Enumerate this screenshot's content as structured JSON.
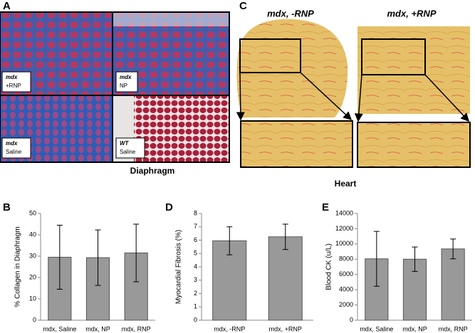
{
  "panels": {
    "labels": [
      "A",
      "B",
      "C",
      "D",
      "E"
    ],
    "diaphragm_caption": "Diaphragm",
    "heart_caption": "Heart",
    "heart_titles": [
      "mdx, -RNP",
      "mdx, +RNP"
    ],
    "image_labels": [
      [
        "mdx",
        "+RNP"
      ],
      [
        "mdx",
        "NP"
      ],
      [
        "mdx",
        "Saline"
      ],
      [
        "WT",
        "Saline"
      ]
    ]
  },
  "chart_data": [
    {
      "type": "bar",
      "y_label": "% Collagen in Diaphragm",
      "categories": [
        "mdx, Saline",
        "mdx, NP",
        "mdx, RNP"
      ],
      "values": [
        29.5,
        29.3,
        31.5
      ],
      "errors": [
        15,
        13,
        13.5
      ],
      "color": "#999999",
      "ylim": [
        0,
        50
      ],
      "yticks": [
        0,
        10,
        20,
        30,
        40,
        50
      ]
    },
    {
      "type": "bar",
      "y_label": "Myocardial Fibrosis (%)",
      "categories": [
        "mdx, -RNP",
        "mdx, +RNP"
      ],
      "values": [
        5.95,
        6.25
      ],
      "errors": [
        1.05,
        0.95
      ],
      "color": "#999999",
      "ylim": [
        0,
        8
      ],
      "yticks": [
        0,
        1,
        2,
        3,
        4,
        5,
        6,
        7,
        8
      ]
    },
    {
      "type": "bar",
      "y_label": "Blood CK (u/L)",
      "categories": [
        "mdx, Saline",
        "mdx, NP",
        "mdx, RNP"
      ],
      "values": [
        8050,
        8000,
        9350
      ],
      "errors": [
        3600,
        1600,
        1300
      ],
      "color": "#999999",
      "ylim": [
        0,
        14000
      ],
      "yticks": [
        0,
        2000,
        4000,
        6000,
        8000,
        10000,
        12000,
        14000
      ]
    }
  ]
}
